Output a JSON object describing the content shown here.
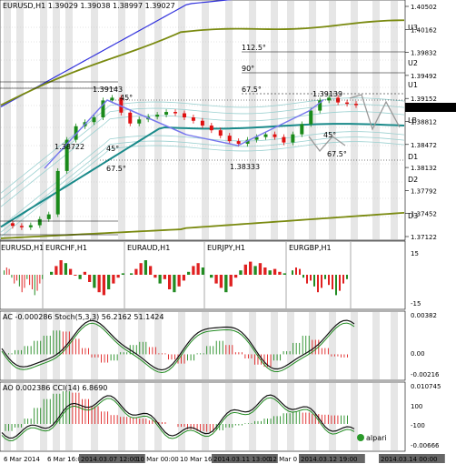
{
  "colors": {
    "background": "#ffffff",
    "grid": "#c8c8c8",
    "shade": "#e6e6e6",
    "price_up": "#1a8a1a",
    "price_down": "#e01010",
    "bull": "#228b22",
    "bear": "#e02020",
    "blue_band": "#3333dd",
    "olive_band": "#7a8a10",
    "teal_ma": "#1a8a8a",
    "light_band": "#9ad0d0",
    "zigzag": "#7777ee",
    "projection": "#999999",
    "osc_line": "#111111",
    "green_line": "#228b22",
    "tag_bg": "#666666",
    "tag_text": "#ffffff",
    "price_tag_bg": "#000000"
  },
  "main_chart": {
    "title": "EURUSD,H1  1.39029 1.39038 1.38997 1.39027",
    "price_axis_labels": [
      "1.40502",
      "1.40162",
      "1.39832",
      "1.39492",
      "1.39152",
      "1.38812",
      "1.38472",
      "1.38132",
      "1.37792",
      "1.37452",
      "1.37122"
    ],
    "current_price": "1.39027",
    "level_labels": [
      "U3",
      "U2",
      "U1",
      "LB",
      "D1",
      "D2",
      "D3"
    ],
    "annotations": {
      "high1": "1.39143",
      "mid1": "1.38722",
      "low1": "1.38333",
      "high2": "1.39139",
      "a45_top": "45°",
      "a45_left": "45°",
      "a675_left": "67.5°",
      "a1125": "112.5°",
      "a90": "90°",
      "a675_top": "67.5°",
      "a45_right": "45°",
      "a675_right": "67.5°"
    }
  },
  "chart_data": [
    {
      "type": "line",
      "title": "EURUSD,H1",
      "ylim": [
        1.3712,
        1.405
      ],
      "series": [
        {
          "name": "EURUSD",
          "values": [
            1.3729,
            1.3725,
            1.3723,
            1.3726,
            1.3735,
            1.3742,
            1.3806,
            1.3852,
            1.3872,
            1.3878,
            1.3885,
            1.391,
            1.3914,
            1.3892,
            1.3876,
            1.3882,
            1.3886,
            1.3889,
            1.3893,
            1.3891,
            1.3885,
            1.388,
            1.3873,
            1.3866,
            1.3858,
            1.385,
            1.3846,
            1.3852,
            1.3856,
            1.386,
            1.3856,
            1.3848,
            1.386,
            1.3875,
            1.3895,
            1.391,
            1.3914,
            1.3907,
            1.3905,
            1.3903
          ]
        }
      ]
    },
    {
      "type": "bar",
      "title": "AC -0.000286  Stoch(5,3,3) 56.2162 51.1424",
      "ylim": [
        -0.00216,
        0.00382
      ],
      "y_ticks": [
        "0.00382",
        "0.00",
        "-0.00216"
      ],
      "values": [
        0.0001,
        0.0004,
        0.0008,
        0.0013,
        0.0018,
        0.0023,
        0.0022,
        0.0015,
        0.0006,
        -0.0003,
        -0.0008,
        -0.0006,
        0.0002,
        0.0009,
        0.0012,
        0.0007,
        0.0001,
        -0.0005,
        -0.0009,
        -0.0006,
        0.0001,
        0.0008,
        0.0013,
        0.0009,
        0.0002,
        -0.0004,
        -0.001,
        -0.0012,
        -0.0006,
        0.0003,
        0.0011,
        0.0018,
        0.0014,
        0.0006,
        -0.0002,
        -0.0003
      ]
    },
    {
      "type": "bar",
      "title": "AO 0.002386  CCI(14) 6.8690",
      "ylim": [
        -0.00666,
        0.010745
      ],
      "y_ticks": [
        "0.010745",
        "100",
        "-100",
        "-0.00666"
      ],
      "values": [
        -0.002,
        -0.001,
        0.0015,
        0.0045,
        0.007,
        0.0085,
        0.0092,
        0.0088,
        0.007,
        0.005,
        0.0035,
        0.0025,
        0.002,
        0.0018,
        0.0015,
        0.001,
        0.0005,
        0.0,
        -0.0008,
        -0.0015,
        -0.002,
        -0.0022,
        -0.0018,
        -0.001,
        -0.0004,
        0.0002,
        0.0008,
        0.0015,
        0.0022,
        0.003,
        0.0035,
        0.0032,
        0.0028,
        0.0026,
        0.0024,
        0.0024
      ]
    }
  ],
  "mini_charts": {
    "label_main": "EURUSD,H1",
    "pairs": [
      "EURCHF,H1",
      "EURAUD,H1",
      "EURJPY,H1",
      "EURGBP,H1"
    ],
    "ticks": [
      "15",
      "-15"
    ],
    "values": [
      [
        3,
        5,
        4,
        -2,
        -6,
        -4,
        -8,
        -12,
        -9,
        -3,
        -7,
        -10,
        -14,
        -11,
        -6,
        -3
      ],
      [
        2,
        6,
        10,
        8,
        4,
        0,
        -3,
        2,
        -5,
        -9,
        -12,
        -14,
        -10,
        -6,
        -2,
        1
      ],
      [
        1,
        4,
        8,
        10,
        6,
        -2,
        -6,
        -3,
        -10,
        -12,
        -8,
        -4,
        2,
        6,
        8,
        5
      ],
      [
        -2,
        -6,
        -9,
        -12,
        -8,
        -2,
        3,
        7,
        9,
        6,
        8,
        5,
        3,
        4,
        2,
        1
      ]
    ]
  },
  "time_axis": {
    "labels": [
      "6 Mar 2014",
      "6 Mar 16:00",
      "2014.03.07 12:00",
      "10 Mar 00:00",
      "10 Mar 16:00",
      "2014.03.11 13:00",
      "12 Mar 0",
      "2014.03.12 19:00",
      "2014.03.14 00:00"
    ]
  },
  "logo": "alpari"
}
